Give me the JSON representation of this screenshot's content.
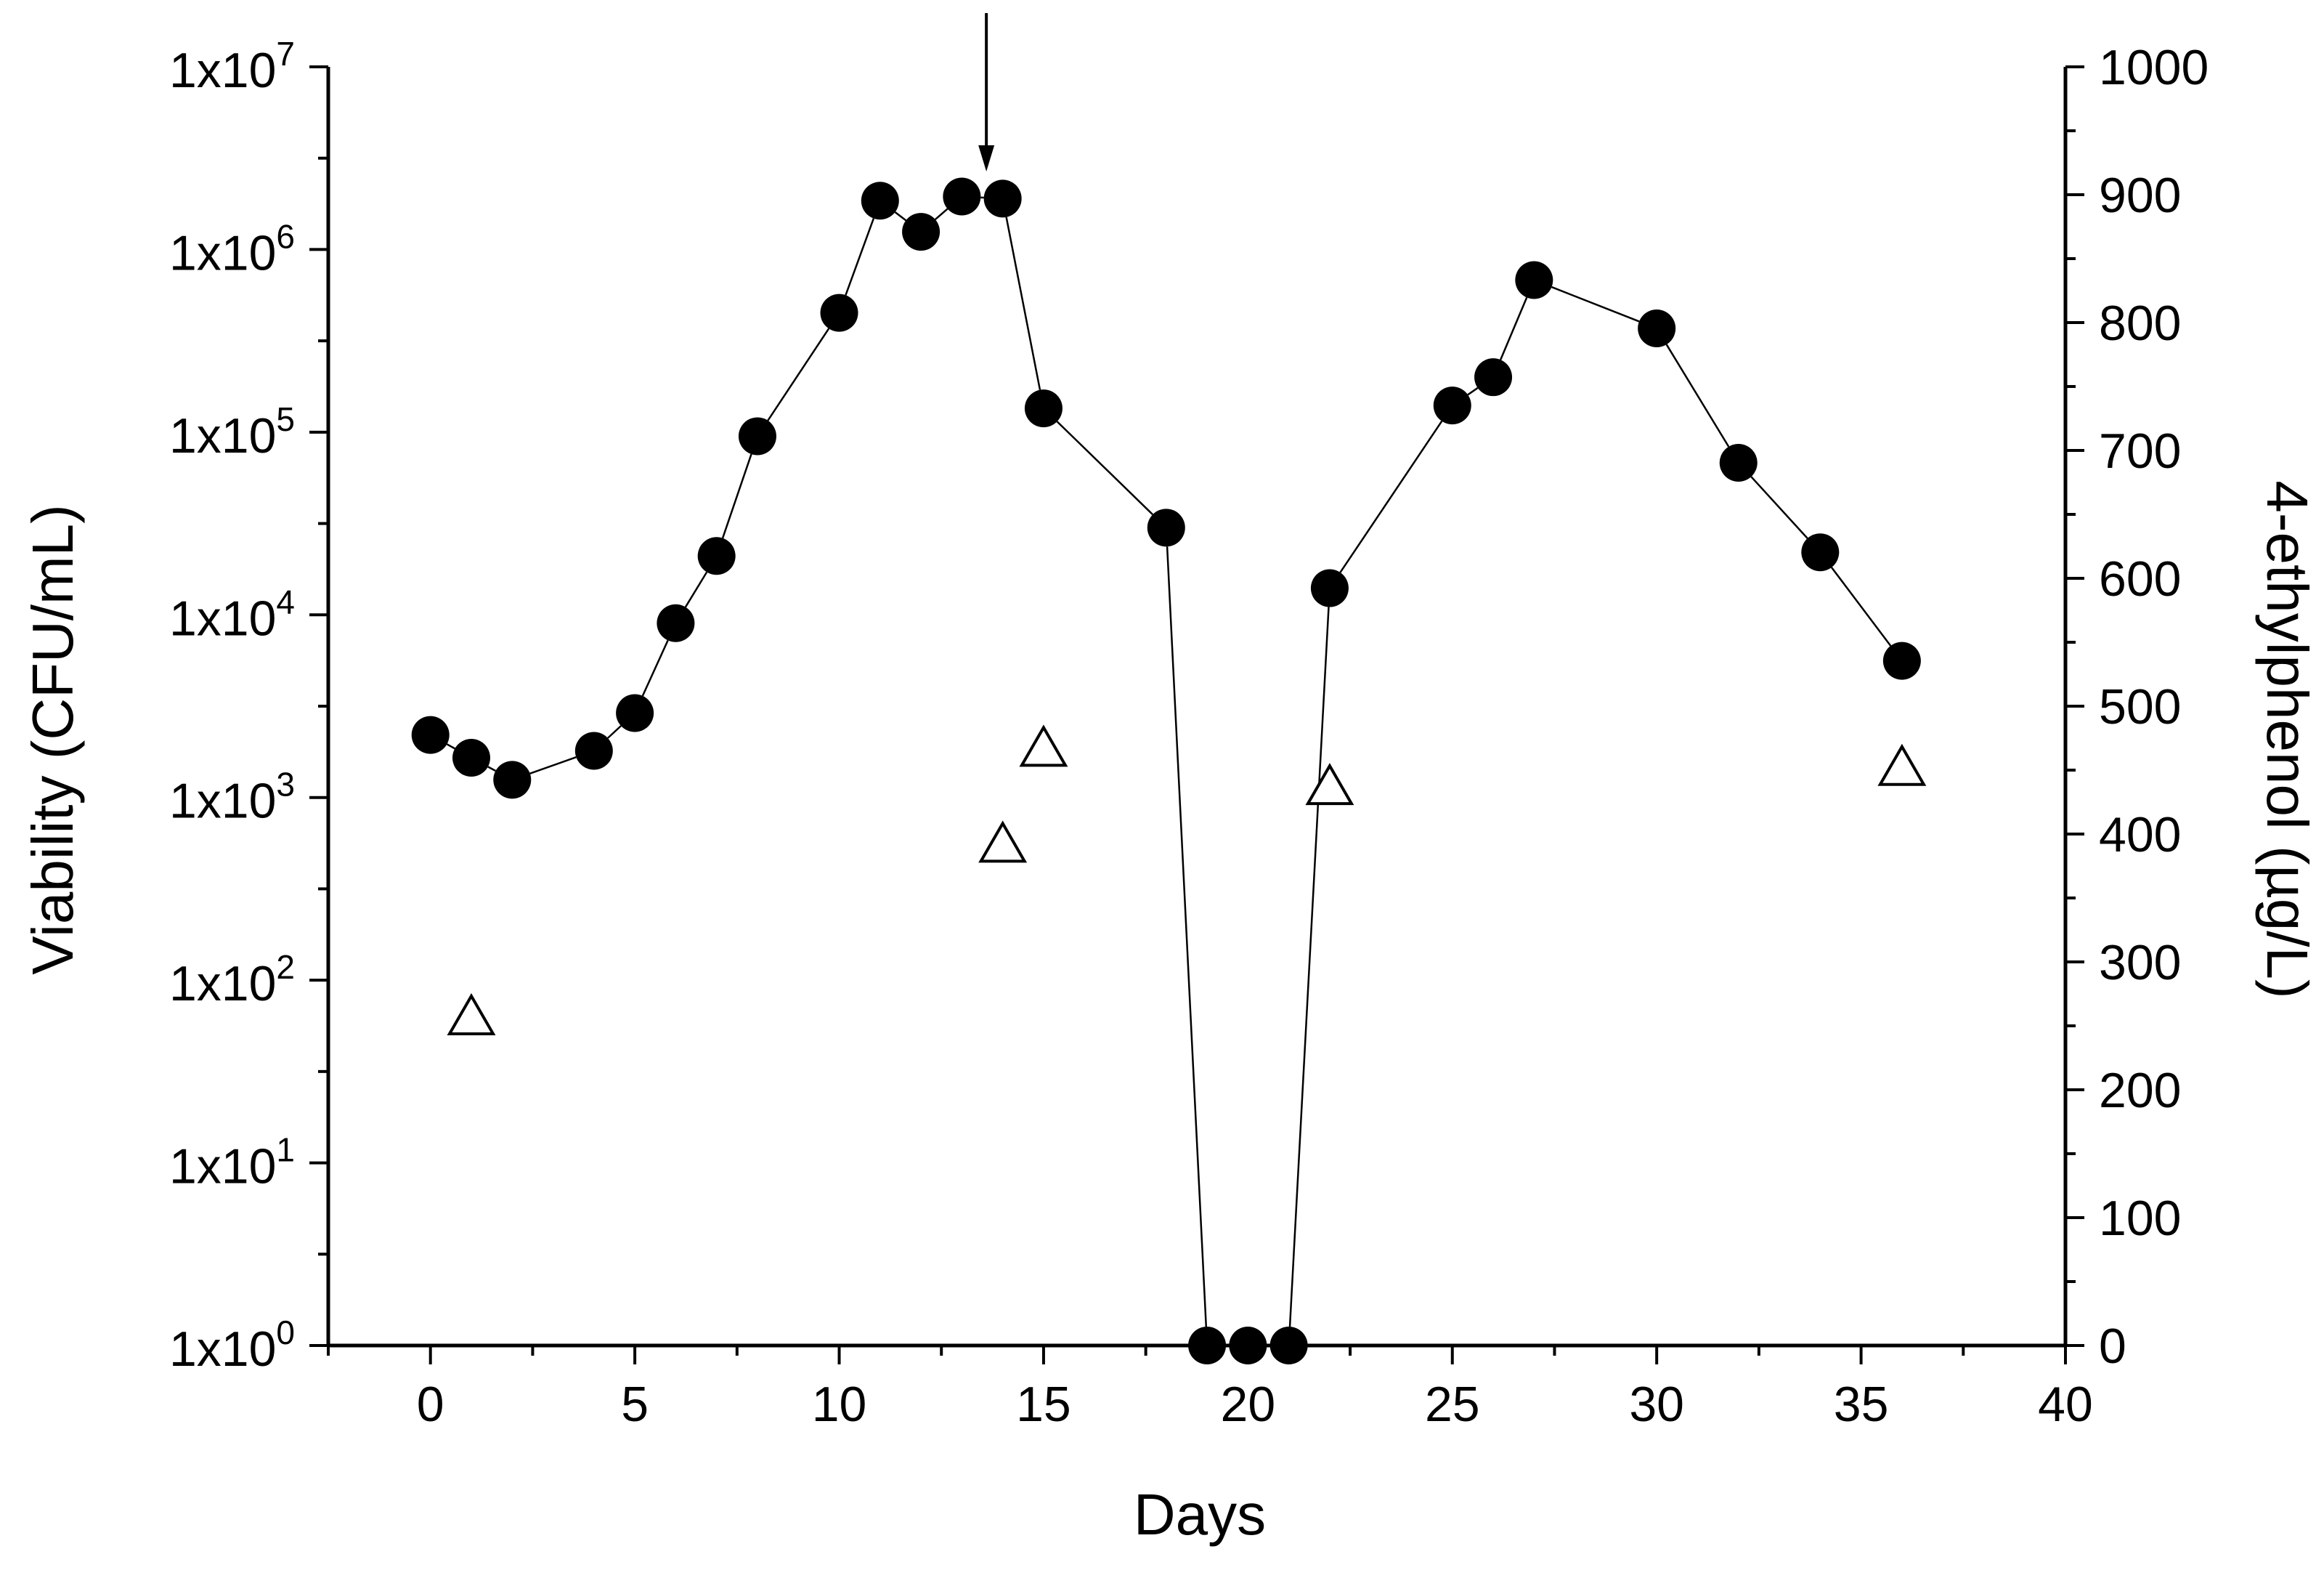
{
  "chart_data": {
    "type": "scatter",
    "title": "",
    "xlabel": "Days",
    "ylabel_left": "Viability (CFU/mL)",
    "ylabel_right": "4-ethylphenol (µg/L)",
    "xlim": [
      -2.5,
      40
    ],
    "x_ticks": [
      "0",
      "5",
      "10",
      "15",
      "20",
      "25",
      "30",
      "35",
      "40"
    ],
    "y_left_scale": "log",
    "y_left_lim": [
      1,
      10000000
    ],
    "y_left_ticks": [
      {
        "base": "1x10",
        "exp": "0"
      },
      {
        "base": "1x10",
        "exp": "1"
      },
      {
        "base": "1x10",
        "exp": "2"
      },
      {
        "base": "1x10",
        "exp": "3"
      },
      {
        "base": "1x10",
        "exp": "4"
      },
      {
        "base": "1x10",
        "exp": "5"
      },
      {
        "base": "1x10",
        "exp": "6"
      },
      {
        "base": "1x10",
        "exp": "7"
      }
    ],
    "y_right_lim": [
      0,
      1000
    ],
    "y_right_ticks": [
      "0",
      "100",
      "200",
      "300",
      "400",
      "500",
      "600",
      "700",
      "800",
      "900",
      "1000"
    ],
    "grid": false,
    "legend": "none",
    "annotation_arrow_day": 13.6,
    "series": [
      {
        "marker": "filled-circle",
        "axis": "left",
        "connected": true,
        "points": [
          {
            "x": 0,
            "y": 2200
          },
          {
            "x": 1,
            "y": 1650
          },
          {
            "x": 2,
            "y": 1250
          },
          {
            "x": 4,
            "y": 1800
          },
          {
            "x": 5,
            "y": 2900
          },
          {
            "x": 6,
            "y": 9000
          },
          {
            "x": 7,
            "y": 21000
          },
          {
            "x": 8,
            "y": 95000
          },
          {
            "x": 10,
            "y": 450000
          },
          {
            "x": 11,
            "y": 1850000
          },
          {
            "x": 12,
            "y": 1250000
          },
          {
            "x": 13,
            "y": 1950000
          },
          {
            "x": 14,
            "y": 1900000
          },
          {
            "x": 15,
            "y": 135000
          },
          {
            "x": 18,
            "y": 30000
          },
          {
            "x": 19,
            "y": 1
          },
          {
            "x": 20,
            "y": 1
          },
          {
            "x": 21,
            "y": 1
          },
          {
            "x": 22,
            "y": 14000
          },
          {
            "x": 25,
            "y": 140000
          },
          {
            "x": 26,
            "y": 200000
          },
          {
            "x": 27,
            "y": 680000
          },
          {
            "x": 30,
            "y": 370000
          },
          {
            "x": 32,
            "y": 68000
          },
          {
            "x": 34,
            "y": 22000
          },
          {
            "x": 36,
            "y": 5600
          }
        ]
      },
      {
        "marker": "open-triangle",
        "axis": "right",
        "connected": false,
        "points": [
          {
            "x": 1,
            "y": 255
          },
          {
            "x": 14,
            "y": 390
          },
          {
            "x": 15,
            "y": 465
          },
          {
            "x": 22,
            "y": 435
          },
          {
            "x": 36,
            "y": 450
          }
        ]
      }
    ]
  }
}
